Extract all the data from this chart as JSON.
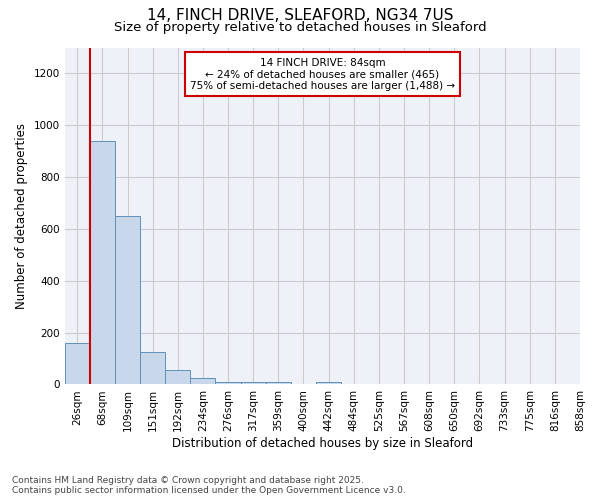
{
  "title1": "14, FINCH DRIVE, SLEAFORD, NG34 7US",
  "title2": "Size of property relative to detached houses in Sleaford",
  "xlabel": "Distribution of detached houses by size in Sleaford",
  "ylabel": "Number of detached properties",
  "footnote1": "Contains HM Land Registry data © Crown copyright and database right 2025.",
  "footnote2": "Contains public sector information licensed under the Open Government Licence v3.0.",
  "annotation_line1": "14 FINCH DRIVE: 84sqm",
  "annotation_line2": "← 24% of detached houses are smaller (465)",
  "annotation_line3": "75% of semi-detached houses are larger (1,488) →",
  "bar_values": [
    160,
    940,
    650,
    125,
    55,
    25,
    10,
    10,
    10,
    0,
    10,
    0,
    0,
    0,
    0,
    0,
    0,
    0,
    0,
    0
  ],
  "bar_labels": [
    "26sqm",
    "68sqm",
    "109sqm",
    "151sqm",
    "192sqm",
    "234sqm",
    "276sqm",
    "317sqm",
    "359sqm",
    "400sqm",
    "442sqm",
    "484sqm",
    "525sqm",
    "567sqm",
    "608sqm",
    "650sqm",
    "692sqm",
    "733sqm",
    "775sqm",
    "816sqm",
    "858sqm"
  ],
  "bar_color": "#c8d8ea",
  "bar_edge_color": "#6090bb",
  "vline_color": "#cc0000",
  "annotation_box_color": "#cc0000",
  "ylim": [
    0,
    1300
  ],
  "yticks": [
    0,
    200,
    400,
    600,
    800,
    1000,
    1200
  ],
  "grid_color": "#cccccc",
  "bg_color": "#eef2f8",
  "title_fontsize": 11,
  "subtitle_fontsize": 9.5,
  "axis_label_fontsize": 8.5,
  "tick_fontsize": 7.5,
  "annot_fontsize": 7.5,
  "footnote_fontsize": 6.5
}
